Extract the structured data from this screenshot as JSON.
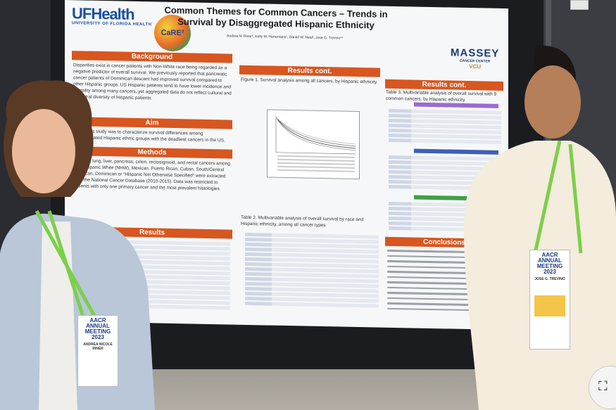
{
  "poster": {
    "logo_uf": "UFHealth",
    "logo_uf_sub": "UNIVERSITY OF FLORIDA HEALTH",
    "logo_care": "CaRE²",
    "title": "Common Themes for Common Cancers – Trends in Survival by Disaggregated Hispanic Ethnicity",
    "authors": "Andrea N. Riner¹, Kelly M. Herremans¹, Daniel W. Neal², Jose G. Trevino³⁴",
    "logo_massey": "MASSEY",
    "logo_massey_sub": "CANCER CENTER",
    "logo_vcu": "VCU",
    "sections": {
      "background": "Background",
      "aim": "Aim",
      "methods": "Methods",
      "results": "Results",
      "results_cont_1": "Results cont.",
      "results_cont_2": "Results cont.",
      "conclusions": "Conclusions"
    },
    "background_text": "Disparities exist in cancer patients with Non-White race being regarded as a negative predictor of overall survival. We previously reported that pancreatic cancer patients of Dominican descent had improved survival compared to other Hispanic groups. US Hispanic patients tend to have lower incidence and mortality among many cancers, yet aggregated data do not reflect cultural and ancestral diversity of Hispanic patients.",
    "aim_text": "Aim of this study was to characterize survival differences among disaggregated Hispanic ethnic groups with the deadliest cancers in the US.",
    "methods_text": "prostate, lung, liver, pancreas, colon, rectosigmoid, and rectal cancers among Non-Hispanic White (NHW), Mexican, Puerto Rican, Cuban, South/Central American, Dominican or “Hispanic Not Otherwise Specified” were extracted from the National Cancer Database (2010-2015). Data was restricted to patients with only one primary cancer and the most prevalent histologies.",
    "figure1_caption": "Figure 1. Survival analysis among all cancers, by Hispanic ethnicity.",
    "table2_caption": "Table 2. Multivariable analysis of overall survival by race and Hispanic ethnicity, among all cancer types",
    "table3_caption": "Table 3. Multivariable analysis of overall survival with 9 common cancers, by Hispanic ethnicity."
  },
  "badges": {
    "left_event": "AACR ANNUAL MEETING 2023",
    "left_name": "ANDREA NICOLE RINER",
    "right_event": "AACR ANNUAL MEETING 2023",
    "right_name": "JOSE G. TREVINO"
  },
  "colors": {
    "section_orange": "#d8561f",
    "poster_bg": "#f6f7f9",
    "lanyard_green": "#7ccf4a",
    "board": "#1b1c20"
  },
  "icons": {
    "corner_button": "scan-icon"
  }
}
